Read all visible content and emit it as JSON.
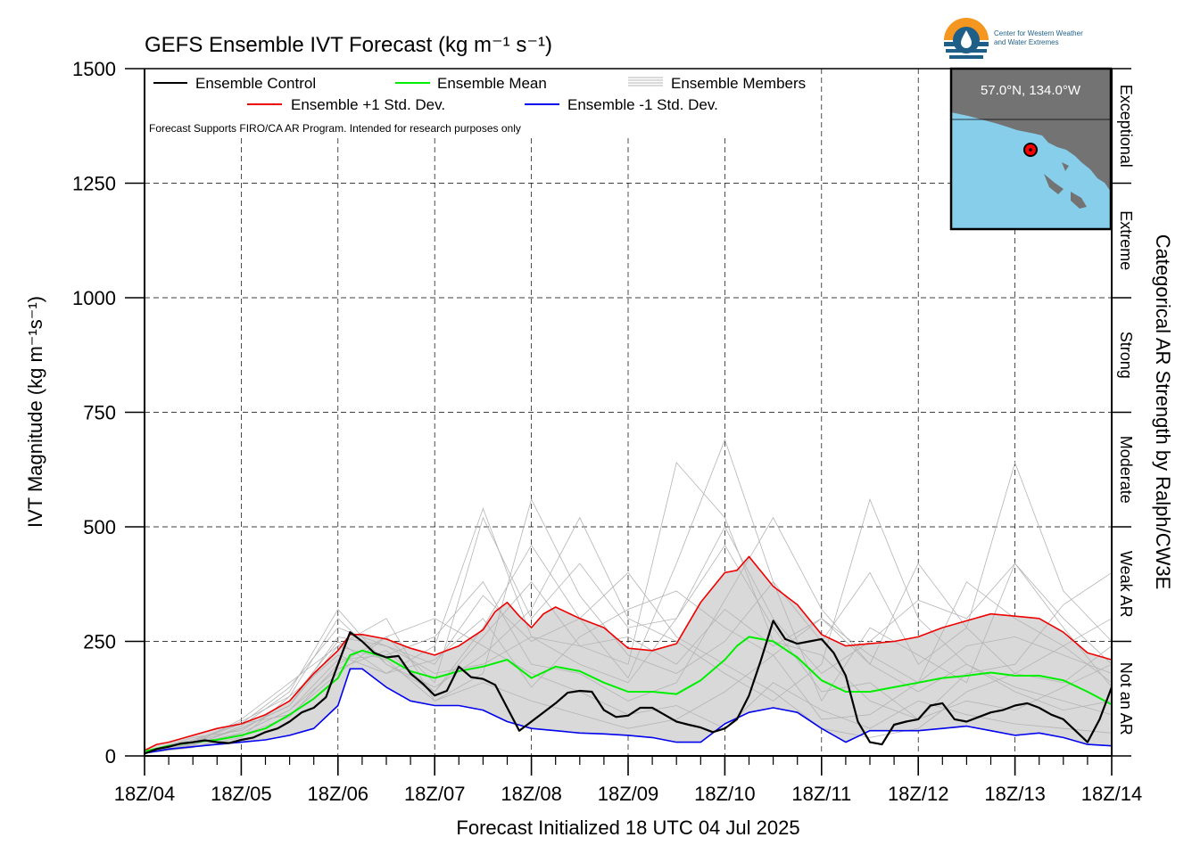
{
  "title": "GEFS Ensemble IVT Forecast (kg m⁻¹ s⁻¹)",
  "xlabel": "Forecast Initialized 18 UTC 04 Jul 2025",
  "ylabel": "IVT Magnitude (kg m⁻¹s⁻¹)",
  "right_axis_label": "Categorical AR Strength by Ralph/CW3E",
  "disclaimer": "Forecast Supports FIRO/CA AR Program. Intended for research purposes only",
  "logo": {
    "org_line1": "Center for Western Weather",
    "org_line2": "and Water Extremes"
  },
  "inset_map": {
    "location_label": "57.0°N, 134.0°W",
    "land_color": "#737373",
    "ocean_color": "#87ceeb",
    "marker_color": "#ff0000"
  },
  "legend": {
    "control": "Ensemble Control",
    "mean": "Ensemble Mean",
    "members": "Ensemble Members",
    "plus_sd": "Ensemble +1 Std. Dev.",
    "minus_sd": "Ensemble -1 Std. Dev."
  },
  "categories": [
    "Not an AR",
    "Weak AR",
    "Moderate",
    "Strong",
    "Extreme",
    "Exceptional"
  ],
  "category_bounds": [
    0,
    250,
    500,
    750,
    1000,
    1250,
    1500
  ],
  "colors": {
    "control": "#000000",
    "mean": "#00ee00",
    "plus_sd": "#ee0000",
    "minus_sd": "#0000ee",
    "members": "#b4b4b4",
    "spread_fill": "#d9d9d9"
  },
  "chart_data": {
    "type": "line",
    "x_unit": "days since 18Z 04 Jul 2025",
    "xlim": [
      0,
      10
    ],
    "ylim": [
      0,
      1500
    ],
    "ytick_values": [
      0,
      250,
      500,
      750,
      1000,
      1250,
      1500
    ],
    "ytick_labels": [
      "0",
      "250",
      "500",
      "750",
      "1000",
      "1250",
      "1500"
    ],
    "xtick_labels": [
      "18Z/04",
      "18Z/05",
      "18Z/06",
      "18Z/07",
      "18Z/08",
      "18Z/09",
      "18Z/10",
      "18Z/11",
      "18Z/12",
      "18Z/13",
      "18Z/14"
    ],
    "grid": true,
    "series": [
      {
        "name": "Ensemble Control",
        "color": "#000000",
        "width": 2.2,
        "x": [
          0,
          0.125,
          0.25,
          0.375,
          0.5,
          0.625,
          0.75,
          0.875,
          1,
          1.125,
          1.25,
          1.375,
          1.5,
          1.625,
          1.75,
          1.875,
          2,
          2.125,
          2.25,
          2.375,
          2.5,
          2.625,
          2.75,
          2.875,
          3,
          3.125,
          3.25,
          3.375,
          3.5,
          3.625,
          3.75,
          3.875,
          4,
          4.125,
          4.25,
          4.375,
          4.5,
          4.625,
          4.75,
          4.875,
          5,
          5.125,
          5.25,
          5.375,
          5.5,
          5.625,
          5.75,
          5.875,
          6,
          6.125,
          6.25,
          6.375,
          6.5,
          6.625,
          6.75,
          6.875,
          7,
          7.125,
          7.25,
          7.375,
          7.5,
          7.625,
          7.75,
          7.875,
          8,
          8.125,
          8.25,
          8.375,
          8.5,
          8.625,
          8.75,
          8.875,
          9,
          9.125,
          9.25,
          9.375,
          9.5,
          9.625,
          9.75,
          9.875,
          10
        ],
        "y": [
          5,
          15,
          20,
          27,
          30,
          34,
          30,
          28,
          35,
          40,
          52,
          60,
          75,
          95,
          105,
          128,
          200,
          270,
          250,
          225,
          215,
          218,
          180,
          158,
          132,
          142,
          195,
          172,
          168,
          155,
          105,
          55,
          75,
          95,
          115,
          138,
          142,
          140,
          100,
          85,
          88,
          105,
          105,
          90,
          75,
          68,
          62,
          52,
          60,
          80,
          132,
          210,
          295,
          255,
          245,
          250,
          255,
          225,
          175,
          75,
          30,
          25,
          68,
          75,
          80,
          110,
          115,
          80,
          75,
          85,
          95,
          100,
          110,
          115,
          105,
          90,
          80,
          55,
          30,
          80,
          150
        ]
      },
      {
        "name": "Ensemble Mean",
        "color": "#00ee00",
        "width": 2,
        "x": [
          0,
          0.25,
          0.5,
          0.75,
          1,
          1.25,
          1.5,
          1.75,
          2,
          2.125,
          2.25,
          2.5,
          2.75,
          3,
          3.25,
          3.5,
          3.75,
          4,
          4.25,
          4.5,
          4.75,
          5,
          5.25,
          5.5,
          5.75,
          6,
          6.125,
          6.25,
          6.5,
          6.75,
          7,
          7.25,
          7.5,
          7.75,
          8,
          8.25,
          8.5,
          8.75,
          9,
          9.25,
          9.5,
          9.75,
          10
        ],
        "y": [
          10,
          22,
          30,
          35,
          45,
          60,
          90,
          125,
          170,
          220,
          230,
          215,
          185,
          170,
          185,
          195,
          210,
          170,
          195,
          185,
          160,
          140,
          140,
          135,
          165,
          210,
          240,
          260,
          250,
          215,
          165,
          140,
          140,
          150,
          160,
          170,
          175,
          182,
          175,
          175,
          165,
          140,
          112
        ]
      },
      {
        "name": "Ensemble +1 Std. Dev.",
        "color": "#ee0000",
        "width": 1.6,
        "x": [
          0,
          0.125,
          0.25,
          0.5,
          0.75,
          1,
          1.25,
          1.5,
          1.75,
          2,
          2.125,
          2.25,
          2.5,
          2.75,
          3,
          3.25,
          3.5,
          3.625,
          3.75,
          3.875,
          4,
          4.125,
          4.25,
          4.5,
          4.75,
          5,
          5.25,
          5.5,
          5.75,
          6,
          6.125,
          6.25,
          6.5,
          6.75,
          7,
          7.25,
          7.5,
          7.75,
          8,
          8.25,
          8.5,
          8.75,
          9,
          9.25,
          9.5,
          9.75,
          10
        ],
        "y": [
          12,
          25,
          30,
          45,
          60,
          70,
          90,
          120,
          180,
          230,
          265,
          265,
          255,
          235,
          220,
          240,
          275,
          315,
          335,
          305,
          280,
          310,
          325,
          300,
          280,
          235,
          230,
          245,
          335,
          400,
          405,
          435,
          370,
          330,
          265,
          240,
          245,
          250,
          260,
          280,
          295,
          310,
          305,
          300,
          270,
          225,
          210
        ]
      },
      {
        "name": "Ensemble -1 Std. Dev.",
        "color": "#0000ee",
        "width": 1.6,
        "x": [
          0,
          0.25,
          0.5,
          0.75,
          1,
          1.25,
          1.5,
          1.75,
          2,
          2.125,
          2.25,
          2.5,
          2.75,
          3,
          3.25,
          3.5,
          3.75,
          4,
          4.25,
          4.5,
          4.75,
          5,
          5.25,
          5.5,
          5.75,
          6,
          6.25,
          6.5,
          6.75,
          7,
          7.25,
          7.5,
          7.75,
          8,
          8.25,
          8.5,
          8.75,
          9,
          9.25,
          9.5,
          9.75,
          10
        ],
        "y": [
          6,
          15,
          20,
          25,
          30,
          35,
          45,
          60,
          110,
          190,
          190,
          150,
          120,
          110,
          110,
          100,
          75,
          60,
          55,
          50,
          48,
          45,
          40,
          30,
          30,
          70,
          95,
          105,
          95,
          60,
          30,
          55,
          55,
          55,
          60,
          65,
          55,
          45,
          50,
          40,
          25,
          22
        ]
      }
    ],
    "members_fill": {
      "upper_series": "Ensemble +1 Std. Dev.",
      "lower_series": "Ensemble -1 Std. Dev.",
      "color": "#d9d9d9"
    },
    "ensemble_members": [
      {
        "x": [
          0,
          0.5,
          1,
          1.5,
          2,
          2.5,
          3,
          3.5,
          4,
          4.5,
          5,
          5.5,
          6,
          6.5,
          7,
          7.5,
          8,
          8.5,
          9,
          9.5,
          10
        ],
        "y": [
          8,
          30,
          60,
          110,
          260,
          240,
          200,
          350,
          250,
          300,
          170,
          420,
          690,
          380,
          250,
          400,
          200,
          280,
          640,
          360,
          250
        ]
      },
      {
        "x": [
          0,
          0.5,
          1,
          1.5,
          2,
          2.5,
          3,
          3.5,
          4,
          4.5,
          5,
          5.5,
          6,
          6.5,
          7,
          7.5,
          8,
          8.5,
          9,
          9.5,
          10
        ],
        "y": [
          10,
          35,
          70,
          90,
          180,
          260,
          160,
          520,
          300,
          420,
          280,
          300,
          500,
          300,
          180,
          250,
          340,
          300,
          420,
          300,
          200
        ]
      },
      {
        "x": [
          0,
          0.5,
          1,
          1.5,
          2,
          2.5,
          3,
          3.5,
          4,
          4.5,
          5,
          5.5,
          6,
          6.5,
          7,
          7.5,
          8,
          8.5,
          9,
          9.5,
          10
        ],
        "y": [
          5,
          20,
          40,
          130,
          300,
          200,
          140,
          260,
          380,
          240,
          200,
          640,
          520,
          250,
          220,
          120,
          80,
          180,
          200,
          330,
          400
        ]
      },
      {
        "x": [
          0,
          0.5,
          1,
          1.5,
          2,
          2.5,
          3,
          3.5,
          4,
          4.5,
          5,
          5.5,
          6,
          6.5,
          7,
          7.5,
          8,
          8.5,
          9,
          9.5,
          10
        ],
        "y": [
          12,
          25,
          80,
          160,
          240,
          300,
          120,
          180,
          560,
          350,
          220,
          180,
          250,
          380,
          120,
          280,
          220,
          160,
          420,
          280,
          150
        ]
      },
      {
        "x": [
          0,
          0.5,
          1,
          1.5,
          2,
          2.5,
          3,
          3.5,
          4,
          4.5,
          5,
          5.5,
          6,
          6.5,
          7,
          7.5,
          8,
          8.5,
          9,
          9.5,
          10
        ],
        "y": [
          6,
          18,
          50,
          100,
          210,
          220,
          260,
          380,
          200,
          180,
          120,
          160,
          340,
          520,
          320,
          200,
          420,
          280,
          180,
          160,
          240
        ]
      },
      {
        "x": [
          0,
          0.5,
          1,
          1.5,
          2,
          2.5,
          3,
          3.5,
          4,
          4.5,
          5,
          5.5,
          6,
          6.5,
          7,
          7.5,
          8,
          8.5,
          9,
          9.5,
          10
        ],
        "y": [
          9,
          40,
          55,
          120,
          250,
          180,
          210,
          300,
          150,
          260,
          320,
          360,
          280,
          220,
          80,
          90,
          160,
          240,
          260,
          220,
          180
        ]
      },
      {
        "x": [
          0,
          0.5,
          1,
          1.5,
          2,
          2.5,
          3,
          3.5,
          4,
          4.5,
          5,
          5.5,
          6,
          6.5,
          7,
          7.5,
          8,
          8.5,
          9,
          9.5,
          10
        ],
        "y": [
          7,
          22,
          65,
          140,
          320,
          200,
          150,
          220,
          320,
          520,
          300,
          250,
          180,
          120,
          200,
          560,
          300,
          200,
          150,
          120,
          90
        ]
      },
      {
        "x": [
          0,
          0.5,
          1,
          1.5,
          2,
          2.5,
          3,
          3.5,
          4,
          4.5,
          5,
          5.5,
          6,
          6.5,
          7,
          7.5,
          8,
          8.5,
          9,
          9.5,
          10
        ],
        "y": [
          10,
          28,
          45,
          85,
          200,
          260,
          300,
          240,
          180,
          140,
          90,
          110,
          60,
          160,
          100,
          60,
          120,
          90,
          70,
          60,
          50
        ]
      },
      {
        "x": [
          0,
          0.5,
          1,
          1.5,
          2,
          2.5,
          3,
          3.5,
          4,
          4.5,
          5,
          5.5,
          6,
          6.5,
          7,
          7.5,
          8,
          8.5,
          9,
          9.5,
          10
        ],
        "y": [
          8,
          24,
          60,
          110,
          240,
          210,
          120,
          160,
          120,
          90,
          60,
          80,
          140,
          220,
          300,
          220,
          160,
          380,
          300,
          240,
          300
        ]
      },
      {
        "x": [
          0,
          0.5,
          1,
          1.5,
          2,
          2.5,
          3,
          3.5,
          4,
          4.5,
          5,
          5.5,
          6,
          6.5,
          7,
          7.5,
          8,
          8.5,
          9,
          9.5,
          10
        ],
        "y": [
          5,
          30,
          70,
          150,
          280,
          240,
          180,
          200,
          260,
          200,
          160,
          300,
          460,
          280,
          140,
          160,
          80,
          120,
          100,
          150,
          200
        ]
      },
      {
        "x": [
          0,
          0.5,
          1,
          1.5,
          2,
          2.5,
          3,
          3.5,
          4,
          4.5,
          5,
          5.5,
          6,
          6.5,
          7,
          7.5,
          8,
          8.5,
          9,
          9.5,
          10
        ],
        "y": [
          11,
          26,
          50,
          100,
          190,
          230,
          140,
          280,
          460,
          300,
          400,
          260,
          200,
          140,
          60,
          40,
          60,
          140,
          180,
          240,
          160
        ]
      },
      {
        "x": [
          0,
          0.5,
          1,
          1.5,
          2,
          2.5,
          3,
          3.5,
          4,
          4.5,
          5,
          5.5,
          6,
          6.5,
          7,
          7.5,
          8,
          8.5,
          9,
          9.5,
          10
        ],
        "y": [
          9,
          32,
          75,
          130,
          220,
          180,
          240,
          540,
          260,
          240,
          260,
          200,
          320,
          240,
          300,
          200,
          140,
          200,
          140,
          100,
          120
        ]
      }
    ]
  }
}
